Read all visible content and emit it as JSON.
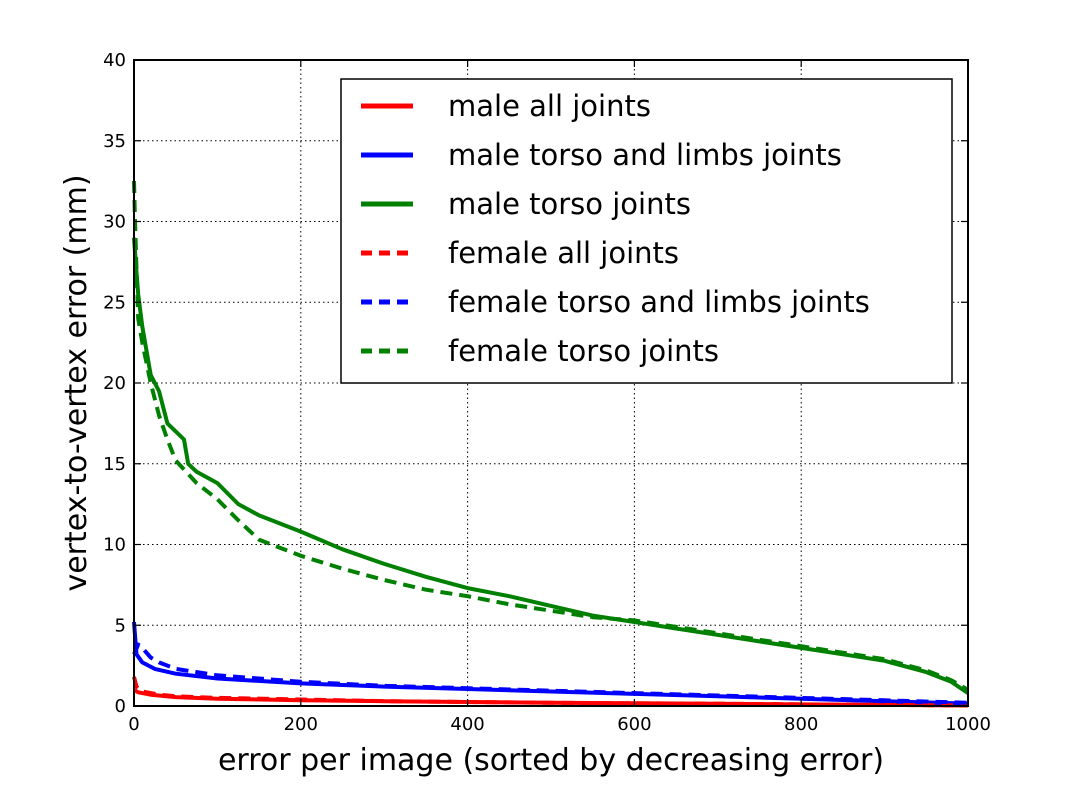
{
  "chart_data": {
    "type": "line",
    "xlabel": "error per image (sorted by decreasing error)",
    "ylabel": "vertex-to-vertex error (mm)",
    "xlim": [
      0,
      1000
    ],
    "ylim": [
      0,
      40
    ],
    "xticks": [
      0,
      200,
      400,
      600,
      800,
      1000
    ],
    "yticks": [
      0,
      5,
      10,
      15,
      20,
      25,
      30,
      35,
      40
    ],
    "grid": true,
    "legend_position": "top-right",
    "series": [
      {
        "name": "male all joints",
        "color": "#ff0000",
        "style": "solid",
        "x": [
          0,
          5,
          20,
          50,
          100,
          200,
          300,
          400,
          500,
          600,
          700,
          800,
          900,
          1000
        ],
        "y": [
          1.0,
          0.85,
          0.7,
          0.55,
          0.45,
          0.35,
          0.3,
          0.25,
          0.2,
          0.17,
          0.14,
          0.1,
          0.07,
          0.03
        ]
      },
      {
        "name": "male torso and limbs joints",
        "color": "#0000ff",
        "style": "solid",
        "x": [
          0,
          3,
          10,
          25,
          50,
          100,
          200,
          300,
          400,
          500,
          600,
          700,
          800,
          900,
          1000
        ],
        "y": [
          5.2,
          3.2,
          2.7,
          2.3,
          2.0,
          1.7,
          1.4,
          1.2,
          1.05,
          0.9,
          0.75,
          0.6,
          0.45,
          0.3,
          0.15
        ]
      },
      {
        "name": "male torso joints",
        "color": "#008000",
        "style": "solid",
        "x": [
          0,
          2,
          5,
          10,
          20,
          30,
          40,
          50,
          60,
          65,
          75,
          100,
          125,
          150,
          200,
          250,
          300,
          350,
          400,
          450,
          500,
          550,
          600,
          650,
          700,
          750,
          800,
          850,
          900,
          950,
          980,
          1000
        ],
        "y": [
          29,
          27.5,
          25.5,
          23.5,
          20.5,
          19.5,
          17.5,
          17.0,
          16.5,
          15.0,
          14.5,
          13.8,
          12.5,
          11.8,
          10.8,
          9.7,
          8.8,
          8.0,
          7.3,
          6.8,
          6.2,
          5.6,
          5.2,
          4.8,
          4.4,
          4.0,
          3.6,
          3.2,
          2.8,
          2.1,
          1.5,
          0.8
        ]
      },
      {
        "name": "female all joints",
        "color": "#ff0000",
        "style": "dashed",
        "x": [
          0,
          3,
          10,
          30,
          50,
          100,
          200,
          300,
          400,
          500,
          600,
          700,
          800,
          900,
          1000
        ],
        "y": [
          1.8,
          1.2,
          0.9,
          0.7,
          0.6,
          0.5,
          0.4,
          0.3,
          0.25,
          0.2,
          0.17,
          0.14,
          0.1,
          0.07,
          0.03
        ]
      },
      {
        "name": "female torso and limbs joints",
        "color": "#0000ff",
        "style": "dashed",
        "x": [
          0,
          5,
          10,
          20,
          30,
          50,
          100,
          200,
          300,
          400,
          500,
          600,
          700,
          800,
          900,
          1000
        ],
        "y": [
          3.2,
          3.8,
          3.6,
          3.0,
          2.7,
          2.3,
          1.9,
          1.5,
          1.25,
          1.1,
          0.95,
          0.8,
          0.65,
          0.5,
          0.35,
          0.2
        ]
      },
      {
        "name": "female torso joints",
        "color": "#008000",
        "style": "dashed",
        "x": [
          0,
          1,
          3,
          5,
          10,
          20,
          30,
          40,
          50,
          75,
          100,
          125,
          150,
          200,
          250,
          300,
          350,
          400,
          450,
          500,
          550,
          600,
          650,
          700,
          750,
          800,
          850,
          900,
          950,
          980,
          1000
        ],
        "y": [
          32.5,
          30.5,
          27.0,
          24.0,
          22.5,
          20.0,
          18.0,
          16.5,
          15.2,
          13.8,
          12.8,
          11.5,
          10.3,
          9.3,
          8.5,
          7.8,
          7.2,
          6.8,
          6.3,
          5.9,
          5.5,
          5.3,
          4.9,
          4.5,
          4.1,
          3.7,
          3.3,
          2.9,
          2.2,
          1.6,
          1.0
        ]
      }
    ]
  }
}
